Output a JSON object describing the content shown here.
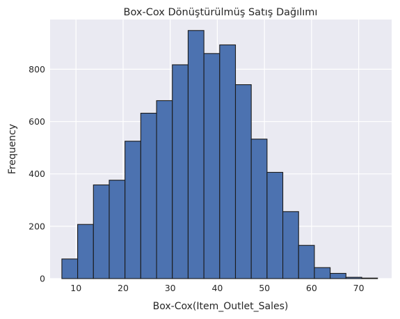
{
  "chart_data": {
    "type": "bar",
    "title": "Box-Cox Dönüştürülmüş Satış Dağılımı",
    "xlabel": "Box-Cox(Item_Outlet_Sales)",
    "ylabel": "Frequency",
    "xlim": [
      4.5,
      77
    ],
    "ylim": [
      0,
      990
    ],
    "xticks": [
      10,
      20,
      30,
      40,
      50,
      60,
      70
    ],
    "yticks": [
      0,
      200,
      400,
      600,
      800
    ],
    "grid": true,
    "bin_edges": [
      7.0,
      10.35,
      13.7,
      17.05,
      20.4,
      23.75,
      27.1,
      30.45,
      33.8,
      37.15,
      40.5,
      43.85,
      47.2,
      50.55,
      53.9,
      57.25,
      60.6,
      63.95,
      67.3,
      70.65,
      74.0
    ],
    "values": [
      75,
      207,
      358,
      376,
      525,
      632,
      680,
      817,
      948,
      860,
      893,
      741,
      533,
      406,
      256,
      127,
      42,
      20,
      5,
      2
    ],
    "colors": {
      "bar_fill": "#4c72b0",
      "bar_edge": "#1a1a1a",
      "plot_bg": "#eaeaf2",
      "grid": "#ffffff"
    }
  }
}
